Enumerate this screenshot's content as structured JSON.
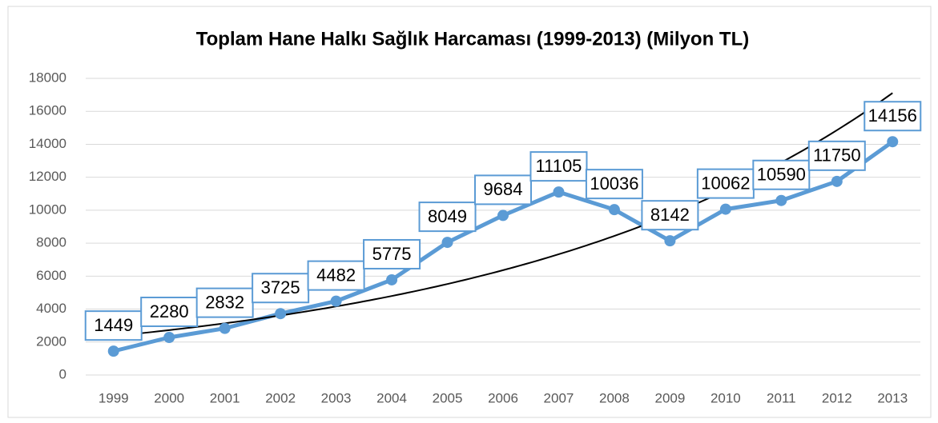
{
  "chart_data": {
    "type": "line",
    "title": "Toplam Hane Halkı  Sağlık Harcaması (1999-2013) (Milyon TL)",
    "categories": [
      "1999",
      "2000",
      "2001",
      "2002",
      "2003",
      "2004",
      "2005",
      "2006",
      "2007",
      "2008",
      "2009",
      "2010",
      "2011",
      "2012",
      "2013"
    ],
    "series": [
      {
        "name": "Toplam Hane Halkı Sağlık Harcaması",
        "color": "#5b9bd5",
        "values": [
          1449,
          2280,
          2832,
          3725,
          4482,
          5775,
          8049,
          9684,
          11105,
          10036,
          8142,
          10062,
          10590,
          11750,
          14156
        ]
      }
    ],
    "ylim": [
      0,
      18000
    ],
    "yticks": [
      0,
      2000,
      4000,
      6000,
      8000,
      10000,
      12000,
      14000,
      16000,
      18000
    ],
    "grid": true,
    "trendline": "exponential",
    "trendline_color": "#000000",
    "data_labels": true
  }
}
